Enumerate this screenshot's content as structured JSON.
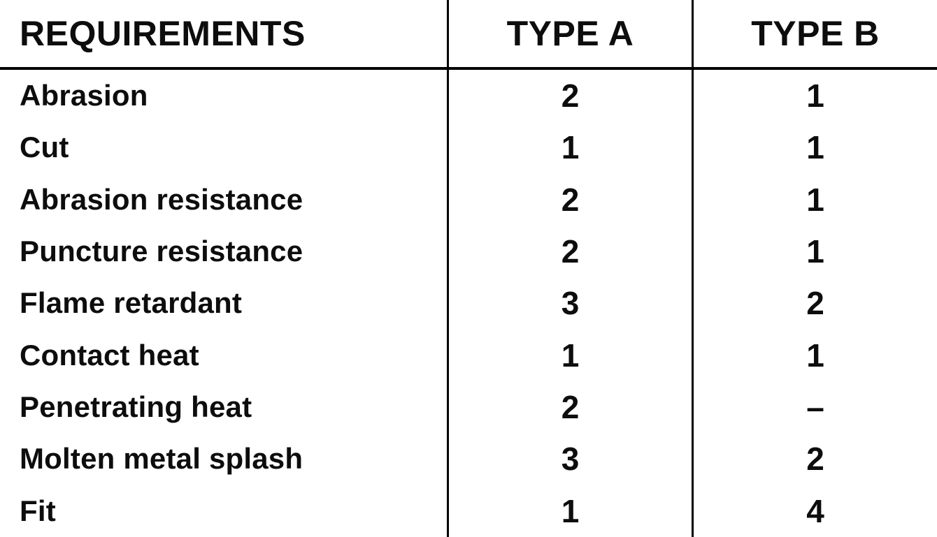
{
  "table": {
    "header": {
      "requirements": "REQUIREMENTS",
      "type_a": "TYPE A",
      "type_b": "TYPE B"
    },
    "rows": [
      {
        "requirement": "Abrasion",
        "type_a": "2",
        "type_b": "1"
      },
      {
        "requirement": "Cut",
        "type_a": "1",
        "type_b": "1"
      },
      {
        "requirement": "Abrasion resistance",
        "type_a": "2",
        "type_b": "1"
      },
      {
        "requirement": "Puncture resistance",
        "type_a": "2",
        "type_b": "1"
      },
      {
        "requirement": "Flame retardant",
        "type_a": "3",
        "type_b": "2"
      },
      {
        "requirement": "Contact heat",
        "type_a": "1",
        "type_b": "1"
      },
      {
        "requirement": "Penetrating heat",
        "type_a": "2",
        "type_b": "–"
      },
      {
        "requirement": "Molten metal splash",
        "type_a": "3",
        "type_b": "2"
      },
      {
        "requirement": "Fit",
        "type_a": "1",
        "type_b": "4"
      }
    ],
    "colors": {
      "text": "#0d0d0d",
      "line": "#000000",
      "background": "#ffffff"
    }
  },
  "chart_data": {
    "type": "table",
    "title": "",
    "categories": [
      "Abrasion",
      "Cut",
      "Abrasion resistance",
      "Puncture resistance",
      "Flame retardant",
      "Contact heat",
      "Penetrating heat",
      "Molten metal splash",
      "Fit"
    ],
    "series": [
      {
        "name": "TYPE A",
        "values": [
          2,
          1,
          2,
          2,
          3,
          1,
          2,
          3,
          1
        ]
      },
      {
        "name": "TYPE B",
        "values": [
          1,
          1,
          1,
          1,
          2,
          1,
          null,
          2,
          4
        ]
      }
    ],
    "notes": "null in TYPE B represents the dash (–) shown for Penetrating heat"
  }
}
